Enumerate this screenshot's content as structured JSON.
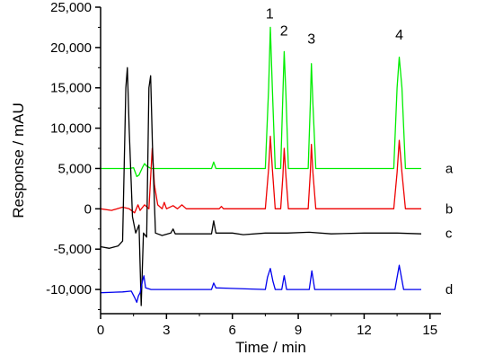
{
  "chart_data": {
    "type": "line",
    "xlabel": "Time / min",
    "ylabel": "Response / mAU",
    "xlim": [
      0,
      15.5
    ],
    "ylim": [
      -13000,
      25000
    ],
    "x_ticks": [
      {
        "value": 0,
        "label": "0"
      },
      {
        "value": 3,
        "label": "3"
      },
      {
        "value": 6,
        "label": "6"
      },
      {
        "value": 9,
        "label": "9"
      },
      {
        "value": 12,
        "label": "12"
      },
      {
        "value": 15,
        "label": "15"
      }
    ],
    "y_ticks": [
      {
        "value": 25000,
        "label": "25,000"
      },
      {
        "value": 20000,
        "label": "20,000"
      },
      {
        "value": 15000,
        "label": "15,000"
      },
      {
        "value": 10000,
        "label": "10,000"
      },
      {
        "value": 5000,
        "label": "5,000"
      },
      {
        "value": 0,
        "label": "0"
      },
      {
        "value": -5000,
        "label": "-5,000"
      },
      {
        "value": -10000,
        "label": "-10,000"
      }
    ],
    "peak_labels": [
      {
        "text": "1",
        "x": 7.7,
        "y": 23600
      },
      {
        "text": "2",
        "x": 8.35,
        "y": 21500
      },
      {
        "text": "3",
        "x": 9.6,
        "y": 20500
      },
      {
        "text": "4",
        "x": 13.6,
        "y": 21000
      }
    ],
    "series": [
      {
        "name": "a",
        "color": "#00ee00",
        "label_at": {
          "x": 15.7,
          "y": 5000
        },
        "points": [
          [
            0,
            5000
          ],
          [
            1.3,
            5000
          ],
          [
            1.5,
            5100
          ],
          [
            1.65,
            4000
          ],
          [
            1.75,
            4200
          ],
          [
            1.9,
            5100
          ],
          [
            2.0,
            5600
          ],
          [
            2.1,
            5300
          ],
          [
            2.3,
            5000
          ],
          [
            3.9,
            5000
          ],
          [
            5.05,
            5000
          ],
          [
            5.15,
            5800
          ],
          [
            5.25,
            5000
          ],
          [
            7.5,
            5000
          ],
          [
            7.65,
            15000
          ],
          [
            7.73,
            22500
          ],
          [
            7.82,
            15000
          ],
          [
            7.95,
            5000
          ],
          [
            8.2,
            5000
          ],
          [
            8.3,
            14000
          ],
          [
            8.36,
            19500
          ],
          [
            8.44,
            14000
          ],
          [
            8.55,
            5000
          ],
          [
            9.45,
            5000
          ],
          [
            9.55,
            13000
          ],
          [
            9.6,
            18000
          ],
          [
            9.67,
            13000
          ],
          [
            9.8,
            5000
          ],
          [
            13.35,
            5000
          ],
          [
            13.5,
            15000
          ],
          [
            13.6,
            18800
          ],
          [
            13.72,
            15000
          ],
          [
            13.88,
            5000
          ],
          [
            14.6,
            5000
          ]
        ]
      },
      {
        "name": "b",
        "color": "#ee0000",
        "label_at": {
          "x": 15.7,
          "y": 0
        },
        "points": [
          [
            0,
            0
          ],
          [
            0.5,
            -200
          ],
          [
            1.0,
            200
          ],
          [
            1.3,
            0
          ],
          [
            1.55,
            -500
          ],
          [
            1.7,
            500
          ],
          [
            1.8,
            -200
          ],
          [
            2.0,
            500
          ],
          [
            2.2,
            0
          ],
          [
            2.35,
            7500
          ],
          [
            2.45,
            3000
          ],
          [
            2.6,
            500
          ],
          [
            2.8,
            0
          ],
          [
            2.9,
            800
          ],
          [
            3.0,
            0
          ],
          [
            3.3,
            400
          ],
          [
            3.5,
            0
          ],
          [
            3.7,
            500
          ],
          [
            3.9,
            0
          ],
          [
            5.4,
            0
          ],
          [
            5.5,
            300
          ],
          [
            5.6,
            0
          ],
          [
            7.5,
            0
          ],
          [
            7.65,
            5000
          ],
          [
            7.73,
            9000
          ],
          [
            7.82,
            5000
          ],
          [
            7.95,
            0
          ],
          [
            8.2,
            0
          ],
          [
            8.3,
            4000
          ],
          [
            8.36,
            7500
          ],
          [
            8.44,
            4000
          ],
          [
            8.55,
            0
          ],
          [
            9.45,
            0
          ],
          [
            9.55,
            4500
          ],
          [
            9.6,
            8000
          ],
          [
            9.67,
            4500
          ],
          [
            9.8,
            0
          ],
          [
            13.35,
            0
          ],
          [
            13.5,
            4500
          ],
          [
            13.6,
            8500
          ],
          [
            13.72,
            4500
          ],
          [
            13.88,
            0
          ],
          [
            14.6,
            0
          ]
        ]
      },
      {
        "name": "c",
        "color": "#000000",
        "label_at": {
          "x": 15.7,
          "y": -3000
        },
        "points": [
          [
            0,
            -4700
          ],
          [
            0.4,
            -4900
          ],
          [
            0.8,
            -4600
          ],
          [
            1.0,
            -4000
          ],
          [
            1.15,
            15000
          ],
          [
            1.22,
            17500
          ],
          [
            1.3,
            10000
          ],
          [
            1.45,
            -1000
          ],
          [
            1.6,
            -3000
          ],
          [
            1.75,
            -2000
          ],
          [
            1.85,
            -12000
          ],
          [
            1.95,
            -3000
          ],
          [
            2.1,
            -3500
          ],
          [
            2.2,
            15000
          ],
          [
            2.28,
            16500
          ],
          [
            2.36,
            8000
          ],
          [
            2.5,
            -3000
          ],
          [
            2.8,
            -3300
          ],
          [
            3.2,
            -3000
          ],
          [
            3.3,
            -2500
          ],
          [
            3.4,
            -3100
          ],
          [
            5.05,
            -3100
          ],
          [
            5.15,
            -1500
          ],
          [
            5.25,
            -3000
          ],
          [
            6.0,
            -3000
          ],
          [
            6.5,
            -3200
          ],
          [
            7.5,
            -3000
          ],
          [
            8.5,
            -3000
          ],
          [
            9.5,
            -2900
          ],
          [
            10.5,
            -3100
          ],
          [
            12.0,
            -3000
          ],
          [
            13.5,
            -3000
          ],
          [
            14.6,
            -3100
          ]
        ]
      },
      {
        "name": "d",
        "color": "#0000ee",
        "label_at": {
          "x": 15.7,
          "y": -10000
        },
        "points": [
          [
            0,
            -10400
          ],
          [
            1.0,
            -10300
          ],
          [
            1.4,
            -10200
          ],
          [
            1.55,
            -11000
          ],
          [
            1.65,
            -11600
          ],
          [
            1.72,
            -10800
          ],
          [
            1.8,
            -10400
          ],
          [
            1.9,
            -9000
          ],
          [
            1.97,
            -8300
          ],
          [
            2.05,
            -9800
          ],
          [
            2.3,
            -10000
          ],
          [
            3.9,
            -10000
          ],
          [
            5.05,
            -10000
          ],
          [
            5.15,
            -9200
          ],
          [
            5.25,
            -9800
          ],
          [
            7.5,
            -10000
          ],
          [
            7.6,
            -8500
          ],
          [
            7.73,
            -7400
          ],
          [
            7.85,
            -9000
          ],
          [
            7.95,
            -10000
          ],
          [
            8.25,
            -10000
          ],
          [
            8.36,
            -8300
          ],
          [
            8.47,
            -10000
          ],
          [
            9.5,
            -10000
          ],
          [
            9.62,
            -7700
          ],
          [
            9.75,
            -10000
          ],
          [
            13.4,
            -10000
          ],
          [
            13.6,
            -7000
          ],
          [
            13.8,
            -10000
          ],
          [
            14.6,
            -10000
          ]
        ]
      }
    ],
    "grid": false,
    "legend": "inline labels at right end of each trace"
  }
}
